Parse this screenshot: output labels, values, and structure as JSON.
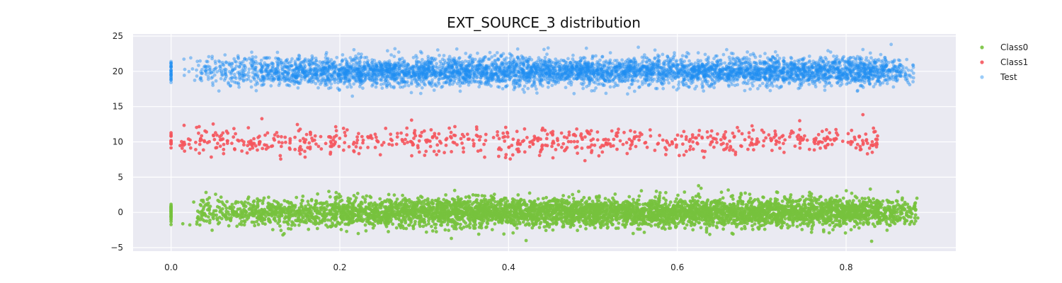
{
  "chart_data": {
    "type": "scatter",
    "title": "EXT_SOURCE_3 distribution",
    "xlabel": "",
    "ylabel": "",
    "xlim": [
      -0.045,
      0.93
    ],
    "ylim": [
      -5.5,
      25.3
    ],
    "x_ticks": [
      0.0,
      0.2,
      0.4,
      0.6,
      0.8
    ],
    "x_tick_labels": [
      "0.0",
      "0.2",
      "0.4",
      "0.6",
      "0.8"
    ],
    "y_ticks": [
      -5,
      0,
      5,
      10,
      15,
      20,
      25
    ],
    "y_tick_labels": [
      "−5",
      "0",
      "5",
      "10",
      "15",
      "20",
      "25"
    ],
    "grid": true,
    "legend_position": "top-right (outside plot)",
    "series": [
      {
        "name": "Class0",
        "color": "#77c23d",
        "alpha": 0.9,
        "y_offset": 0,
        "y_spread_sd": 1.0,
        "x_range": [
          0.0,
          0.885
        ],
        "approx_point_count": 8000,
        "density_profile": "sparse near 0.05-0.15, dense 0.3-0.85, spike at x=0"
      },
      {
        "name": "Class1",
        "color": "#f5555d",
        "alpha": 0.9,
        "y_offset": 10,
        "y_spread_sd": 1.0,
        "x_range": [
          0.0,
          0.84
        ],
        "approx_point_count": 700,
        "density_profile": "roughly uniform 0.02-0.8, small spike at x=0"
      },
      {
        "name": "Test",
        "color": "#1f8ef1",
        "alpha": 0.45,
        "y_offset": 20,
        "y_spread_sd": 1.0,
        "x_range": [
          0.0,
          0.88
        ],
        "approx_point_count": 9000,
        "density_profile": "sparse near 0.02-0.1, dense 0.15-0.85, spike at x=0"
      }
    ]
  }
}
